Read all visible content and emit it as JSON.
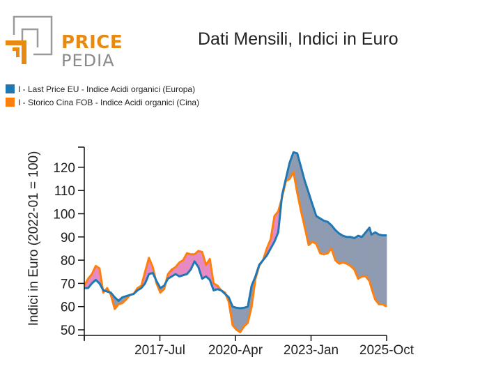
{
  "brand": {
    "line1": "PRICE",
    "line2": "PEDIA",
    "accent": "#e88a12",
    "gray": "#8a8a8a"
  },
  "chart_data": {
    "type": "area",
    "title": "Dati Mensili, Indici in Euro",
    "xlabel": "",
    "ylabel": "Indici in Euro (2022-01 = 100)",
    "ylim": [
      48,
      129
    ],
    "yticks": [
      50,
      60,
      70,
      80,
      90,
      100,
      110,
      120
    ],
    "xticks": [
      "2017-Jul",
      "2020-Apr",
      "2023-Jan",
      "2025-Oct"
    ],
    "x_start": "2014-Oct",
    "x_end": "2025-Oct",
    "legend_position": "top-left",
    "fill_colors": {
      "orange_above": "#e78ac3",
      "blue_above": "#8e9bb0"
    },
    "series": [
      {
        "name": "I - Last Price EU - Indice Acidi organici (Europa)",
        "color": "#1f77b4",
        "points": [
          [
            0,
            68
          ],
          [
            2,
            68
          ],
          [
            4,
            70
          ],
          [
            6,
            71.5
          ],
          [
            8,
            70
          ],
          [
            10,
            67
          ],
          [
            12,
            66.5
          ],
          [
            14,
            66
          ],
          [
            16,
            64
          ],
          [
            18,
            62.5
          ],
          [
            20,
            64
          ],
          [
            22,
            64.5
          ],
          [
            24,
            65
          ],
          [
            26,
            65.5
          ],
          [
            28,
            67
          ],
          [
            30,
            68
          ],
          [
            32,
            70
          ],
          [
            34,
            74
          ],
          [
            36,
            74.5
          ],
          [
            38,
            71
          ],
          [
            40,
            68
          ],
          [
            42,
            69
          ],
          [
            44,
            72
          ],
          [
            46,
            73
          ],
          [
            48,
            74
          ],
          [
            50,
            73
          ],
          [
            52,
            73.5
          ],
          [
            54,
            74
          ],
          [
            56,
            76
          ],
          [
            58,
            79.5
          ],
          [
            60,
            77
          ],
          [
            62,
            72
          ],
          [
            64,
            73
          ],
          [
            66,
            71.5
          ],
          [
            68,
            67
          ],
          [
            70,
            67.5
          ],
          [
            72,
            67
          ],
          [
            74,
            65.5
          ],
          [
            76,
            64
          ],
          [
            78,
            60
          ],
          [
            80,
            59.5
          ],
          [
            82,
            59.3
          ],
          [
            84,
            59.5
          ],
          [
            86,
            60
          ],
          [
            88,
            69
          ],
          [
            90,
            73
          ],
          [
            92,
            78
          ],
          [
            94,
            80
          ],
          [
            96,
            82
          ],
          [
            98,
            85
          ],
          [
            100,
            88
          ],
          [
            102,
            92
          ],
          [
            104,
            108
          ],
          [
            106,
            115
          ],
          [
            108,
            122
          ],
          [
            110,
            126.5
          ],
          [
            112,
            126
          ],
          [
            114,
            120
          ],
          [
            116,
            114
          ],
          [
            118,
            109
          ],
          [
            120,
            104
          ],
          [
            122,
            99
          ],
          [
            124,
            98
          ],
          [
            126,
            97
          ],
          [
            128,
            96.5
          ],
          [
            130,
            95
          ],
          [
            132,
            93
          ],
          [
            134,
            91.5
          ],
          [
            136,
            90.5
          ],
          [
            138,
            90
          ],
          [
            140,
            90
          ],
          [
            142,
            89.5
          ],
          [
            144,
            90.5
          ],
          [
            146,
            90
          ],
          [
            148,
            92
          ],
          [
            150,
            94
          ],
          [
            151,
            91
          ],
          [
            153,
            92
          ],
          [
            155,
            91
          ],
          [
            157,
            90.7
          ],
          [
            159,
            90.7
          ]
        ]
      },
      {
        "name": "I - Storico Cina FOB - Indice Acidi organici (Cina)",
        "color": "#ff7f0e",
        "points": [
          [
            0,
            69
          ],
          [
            2,
            72
          ],
          [
            4,
            74
          ],
          [
            6,
            77.5
          ],
          [
            8,
            76.5
          ],
          [
            10,
            66
          ],
          [
            12,
            68
          ],
          [
            14,
            65
          ],
          [
            16,
            59
          ],
          [
            18,
            61
          ],
          [
            20,
            61.5
          ],
          [
            22,
            63
          ],
          [
            24,
            65
          ],
          [
            26,
            65.5
          ],
          [
            28,
            68
          ],
          [
            30,
            69
          ],
          [
            32,
            75
          ],
          [
            34,
            81
          ],
          [
            36,
            77
          ],
          [
            38,
            70
          ],
          [
            40,
            66
          ],
          [
            42,
            67.5
          ],
          [
            44,
            74
          ],
          [
            46,
            76
          ],
          [
            48,
            77
          ],
          [
            50,
            79
          ],
          [
            52,
            80
          ],
          [
            54,
            83
          ],
          [
            56,
            82.5
          ],
          [
            58,
            82.5
          ],
          [
            60,
            84
          ],
          [
            62,
            83.5
          ],
          [
            64,
            78
          ],
          [
            66,
            80.5
          ],
          [
            68,
            70
          ],
          [
            70,
            69
          ],
          [
            72,
            67
          ],
          [
            74,
            66
          ],
          [
            76,
            62
          ],
          [
            78,
            52
          ],
          [
            80,
            50
          ],
          [
            82,
            49
          ],
          [
            84,
            51.5
          ],
          [
            86,
            53
          ],
          [
            88,
            60
          ],
          [
            90,
            72
          ],
          [
            92,
            77.5
          ],
          [
            94,
            80
          ],
          [
            96,
            85
          ],
          [
            98,
            89
          ],
          [
            100,
            99
          ],
          [
            102,
            101
          ],
          [
            104,
            107
          ],
          [
            106,
            114
          ],
          [
            108,
            115
          ],
          [
            110,
            118
          ],
          [
            112,
            109
          ],
          [
            114,
            101
          ],
          [
            116,
            94
          ],
          [
            118,
            86.5
          ],
          [
            120,
            88
          ],
          [
            122,
            87
          ],
          [
            124,
            83
          ],
          [
            126,
            82.5
          ],
          [
            128,
            83
          ],
          [
            130,
            85
          ],
          [
            132,
            80
          ],
          [
            134,
            78.5
          ],
          [
            136,
            79
          ],
          [
            138,
            78.5
          ],
          [
            140,
            77.5
          ],
          [
            142,
            76
          ],
          [
            144,
            72
          ],
          [
            146,
            73
          ],
          [
            148,
            73
          ],
          [
            150,
            71
          ],
          [
            151,
            68
          ],
          [
            153,
            63
          ],
          [
            155,
            61
          ],
          [
            157,
            61
          ],
          [
            159,
            60
          ]
        ]
      }
    ]
  }
}
